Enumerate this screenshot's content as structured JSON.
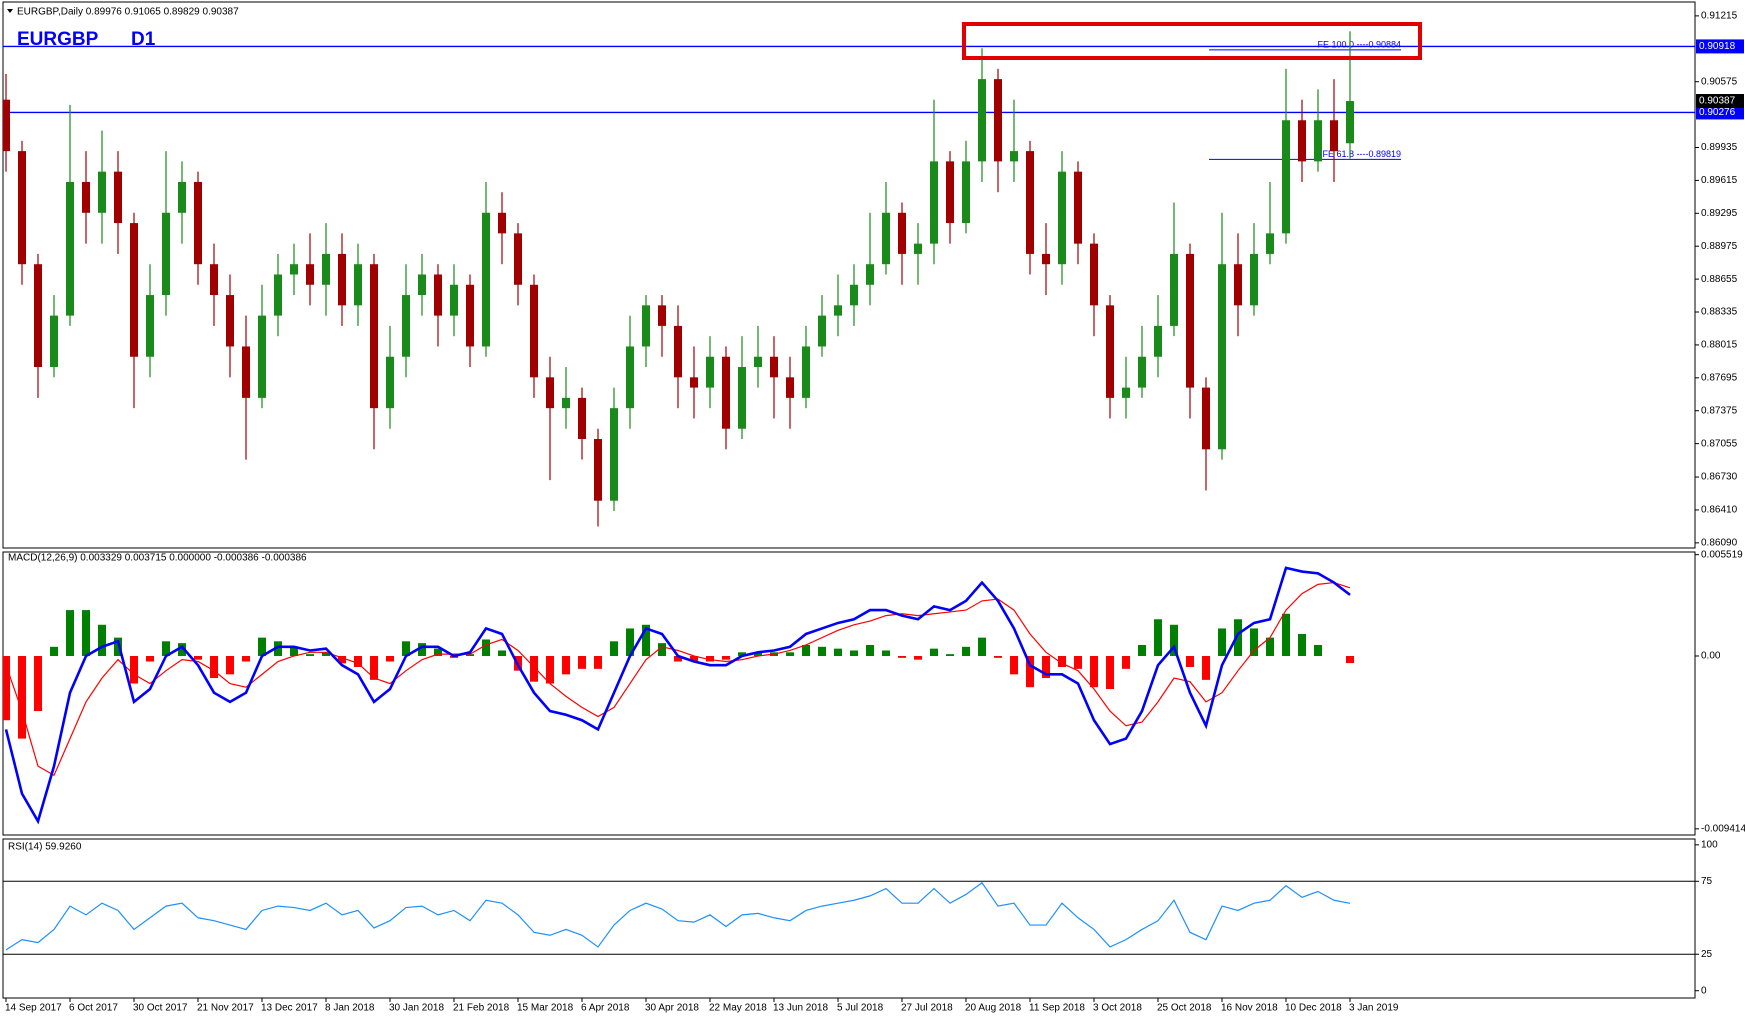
{
  "chart_data": [
    {
      "type": "candlestick",
      "header": "EURGBP,Daily 0.89976 0.91065 0.89829 0.90387",
      "symbol": "EURGBP",
      "timeframe": "D1",
      "up_color": "#1a8a1a",
      "down_color": "#a00000",
      "categories": [
        "14 Sep 2017",
        null,
        null,
        null,
        "6 Oct 2017",
        null,
        null,
        null,
        "30 Oct 2017",
        null,
        null,
        null,
        "21 Nov 2017",
        null,
        null,
        null,
        "13 Dec 2017",
        null,
        null,
        null,
        "8 Jan 2018",
        null,
        null,
        null,
        "30 Jan 2018",
        null,
        null,
        null,
        "21 Feb 2018",
        null,
        null,
        null,
        "15 Mar 2018",
        null,
        null,
        null,
        "6 Apr 2018",
        null,
        null,
        null,
        "30 Apr 2018",
        null,
        null,
        null,
        "22 May 2018",
        null,
        null,
        null,
        "13 Jun 2018",
        null,
        null,
        null,
        "5 Jul 2018",
        null,
        null,
        null,
        "27 Jul 2018",
        null,
        null,
        null,
        "20 Aug 2018",
        null,
        null,
        null,
        "11 Sep 2018",
        null,
        null,
        null,
        "3 Oct 2018",
        null,
        null,
        null,
        "25 Oct 2018",
        null,
        null,
        null,
        "16 Nov 2018",
        null,
        null,
        null,
        "10 Dec 2018",
        null,
        null,
        null,
        "3 Jan 2019"
      ],
      "open": [
        0.904,
        0.899,
        0.888,
        0.878,
        0.883,
        0.896,
        0.893,
        0.897,
        0.892,
        0.879,
        0.885,
        0.893,
        0.896,
        0.888,
        0.885,
        0.88,
        0.875,
        0.883,
        0.887,
        0.888,
        0.886,
        0.889,
        0.884,
        0.888,
        0.874,
        0.879,
        0.885,
        0.887,
        0.883,
        0.886,
        0.88,
        0.893,
        0.891,
        0.886,
        0.877,
        0.874,
        0.875,
        0.871,
        0.865,
        0.874,
        0.88,
        0.884,
        0.882,
        0.877,
        0.876,
        0.879,
        0.872,
        0.878,
        0.879,
        0.877,
        0.875,
        0.88,
        0.883,
        0.884,
        0.886,
        0.888,
        0.893,
        0.889,
        0.89,
        0.898,
        0.892,
        0.898,
        0.906,
        0.898,
        0.899,
        0.889,
        0.888,
        0.897,
        0.89,
        0.884,
        0.875,
        0.876,
        0.879,
        0.882,
        0.889,
        0.876,
        0.87,
        0.888,
        0.884,
        0.889,
        0.891,
        0.902,
        0.898,
        0.902,
        0.89976
      ],
      "high": [
        0.9065,
        0.9,
        0.889,
        0.885,
        0.9035,
        0.899,
        0.901,
        0.899,
        0.893,
        0.888,
        0.899,
        0.898,
        0.897,
        0.89,
        0.887,
        0.883,
        0.886,
        0.889,
        0.89,
        0.891,
        0.892,
        0.891,
        0.89,
        0.889,
        0.882,
        0.888,
        0.889,
        0.888,
        0.888,
        0.887,
        0.896,
        0.895,
        0.892,
        0.887,
        0.879,
        0.878,
        0.876,
        0.872,
        0.876,
        0.883,
        0.885,
        0.885,
        0.884,
        0.88,
        0.881,
        0.88,
        0.881,
        0.882,
        0.881,
        0.879,
        0.882,
        0.885,
        0.887,
        0.888,
        0.893,
        0.896,
        0.894,
        0.892,
        0.904,
        0.899,
        0.9,
        0.909,
        0.907,
        0.904,
        0.9,
        0.892,
        0.899,
        0.898,
        0.891,
        0.885,
        0.879,
        0.882,
        0.885,
        0.894,
        0.89,
        0.877,
        0.893,
        0.891,
        0.892,
        0.896,
        0.907,
        0.904,
        0.905,
        0.906,
        0.91065
      ],
      "low": [
        0.897,
        0.886,
        0.875,
        0.877,
        0.882,
        0.89,
        0.89,
        0.889,
        0.874,
        0.877,
        0.883,
        0.89,
        0.886,
        0.882,
        0.877,
        0.869,
        0.874,
        0.881,
        0.885,
        0.884,
        0.883,
        0.882,
        0.882,
        0.87,
        0.872,
        0.877,
        0.883,
        0.88,
        0.881,
        0.878,
        0.879,
        0.888,
        0.884,
        0.875,
        0.867,
        0.872,
        0.869,
        0.8625,
        0.864,
        0.872,
        0.878,
        0.879,
        0.874,
        0.873,
        0.874,
        0.87,
        0.871,
        0.876,
        0.873,
        0.872,
        0.874,
        0.879,
        0.881,
        0.882,
        0.884,
        0.887,
        0.886,
        0.886,
        0.888,
        0.89,
        0.891,
        0.896,
        0.895,
        0.896,
        0.887,
        0.885,
        0.886,
        0.888,
        0.881,
        0.873,
        0.873,
        0.875,
        0.877,
        0.881,
        0.873,
        0.866,
        0.869,
        0.881,
        0.883,
        0.888,
        0.89,
        0.896,
        0.897,
        0.896,
        0.89829
      ],
      "close": [
        0.899,
        0.888,
        0.878,
        0.883,
        0.896,
        0.893,
        0.897,
        0.892,
        0.879,
        0.885,
        0.893,
        0.896,
        0.888,
        0.885,
        0.88,
        0.875,
        0.883,
        0.887,
        0.888,
        0.886,
        0.889,
        0.884,
        0.888,
        0.874,
        0.879,
        0.885,
        0.887,
        0.883,
        0.886,
        0.88,
        0.893,
        0.891,
        0.886,
        0.877,
        0.874,
        0.875,
        0.871,
        0.865,
        0.874,
        0.88,
        0.884,
        0.882,
        0.877,
        0.876,
        0.879,
        0.872,
        0.878,
        0.879,
        0.877,
        0.875,
        0.88,
        0.883,
        0.884,
        0.886,
        0.888,
        0.893,
        0.889,
        0.89,
        0.898,
        0.892,
        0.898,
        0.906,
        0.898,
        0.899,
        0.889,
        0.888,
        0.897,
        0.89,
        0.884,
        0.875,
        0.876,
        0.879,
        0.882,
        0.889,
        0.876,
        0.87,
        0.888,
        0.884,
        0.889,
        0.891,
        0.902,
        0.898,
        0.902,
        0.899,
        0.90387
      ],
      "ylim": [
        0.8604,
        0.9135
      ],
      "yticks": [
        0.91215,
        0.90575,
        0.89935,
        0.89615,
        0.89295,
        0.88975,
        0.88655,
        0.88335,
        0.88015,
        0.87695,
        0.87375,
        0.87055,
        {
          "value": 0.8673,
          "label": "0.86730"
        },
        {
          "value": 0.8641,
          "label": "0.86410"
        },
        {
          "value": 0.8609,
          "label": "0.86090"
        }
      ],
      "hlines": [
        0.90918,
        0.90276
      ],
      "hline_color": "#0000ff",
      "price_box_color": "#000000",
      "fibo": [
        {
          "label": "FE 100.0 ----0.90884",
          "value": 0.90884
        },
        {
          "label": "FE 61.8 ----0.89819",
          "value": 0.89819
        }
      ],
      "fibo_color": "#0000ff"
    },
    {
      "type": "macd",
      "title": "MACD(12,26,9) 0.003329 0.003715 0.000000 -0.000386 -0.000386",
      "ylim": [
        -0.00975,
        0.005664
      ],
      "yticks": [
        0.005519,
        {
          "value": 0,
          "label": "0.00"
        },
        -0.009414
      ],
      "histogram": {
        "up_color": "#008000",
        "down_color": "#ff0000",
        "values": [
          -0.0035,
          -0.0045,
          -0.003,
          0.0005,
          0.0025,
          0.0025,
          0.0017,
          0.001,
          -0.0015,
          -0.0003,
          0.0008,
          0.0007,
          -0.0002,
          -0.0012,
          -0.001,
          -0.0003,
          0.001,
          0.0008,
          0.0005,
          0.0001,
          0.0002,
          -0.0004,
          -0.0006,
          -0.0013,
          -0.0003,
          0.0008,
          0.0007,
          0.0004,
          -0.0001,
          0.0001,
          0.0009,
          0.0003,
          -0.0008,
          -0.0014,
          -0.0015,
          -0.001,
          -0.0007,
          -0.0007,
          0.0008,
          0.0015,
          0.0017,
          0.0007,
          -0.0003,
          -0.0003,
          -0.0003,
          -0.0002,
          0.0002,
          0.0002,
          0.0002,
          0.0002,
          0.0006,
          0.0005,
          0.0004,
          0.0003,
          0.0006,
          0.0003,
          -0.0001,
          -0.0002,
          0.0004,
          0.0001,
          0.0005,
          0.001,
          -0.0001,
          -0.001,
          -0.0017,
          -0.0012,
          -0.0006,
          -0.0007,
          -0.0017,
          -0.0018,
          -0.0007,
          0.0006,
          0.002,
          0.0017,
          -0.0006,
          -0.0013,
          0.0015,
          0.002,
          0.0015,
          0.001,
          0.0023,
          0.0012,
          0.0006,
          0.0,
          -0.000386
        ]
      },
      "macd_line": {
        "color": "#0000ff",
        "values": [
          -0.004,
          -0.0075,
          -0.009,
          -0.006,
          -0.002,
          0.0,
          0.0005,
          0.0008,
          -0.0025,
          -0.0018,
          0.0,
          0.0005,
          -0.0005,
          -0.002,
          -0.0025,
          -0.002,
          0.0,
          0.0005,
          0.0005,
          0.0003,
          0.0004,
          -0.0005,
          -0.001,
          -0.0025,
          -0.0018,
          0.0,
          0.0005,
          0.0005,
          0.0,
          0.0002,
          0.0015,
          0.0012,
          -0.0005,
          -0.002,
          -0.003,
          -0.0032,
          -0.0035,
          -0.004,
          -0.002,
          0.0,
          0.0015,
          0.0012,
          0.0,
          -0.0003,
          -0.0005,
          -0.0005,
          0.0,
          0.0002,
          0.0003,
          0.0005,
          0.0012,
          0.0015,
          0.0018,
          0.002,
          0.0025,
          0.0025,
          0.0022,
          0.002,
          0.0027,
          0.0025,
          0.003,
          0.004,
          0.003,
          0.0015,
          -0.0005,
          -0.001,
          -0.001,
          -0.0015,
          -0.0035,
          -0.0048,
          -0.0045,
          -0.003,
          -0.0005,
          0.0005,
          -0.002,
          -0.0038,
          -0.0005,
          0.0012,
          0.0018,
          0.002,
          0.0048,
          0.0046,
          0.0045,
          0.004,
          0.003329
        ]
      },
      "signal_line": {
        "color": "#ff0000",
        "values": [
          -0.0005,
          -0.003,
          -0.006,
          -0.0065,
          -0.0045,
          -0.0025,
          -0.0012,
          -0.0002,
          -0.001,
          -0.0015,
          -0.0008,
          -0.0002,
          -0.0003,
          -0.0008,
          -0.0015,
          -0.0017,
          -0.001,
          -0.0003,
          0.0,
          0.0002,
          0.0002,
          -0.0001,
          -0.0004,
          -0.0012,
          -0.0015,
          -0.0008,
          -0.0002,
          0.0001,
          0.0001,
          0.0001,
          0.0006,
          0.0009,
          0.0003,
          -0.0006,
          -0.0015,
          -0.0022,
          -0.0028,
          -0.0033,
          -0.0028,
          -0.0015,
          -0.0002,
          0.0005,
          0.0003,
          0.0,
          -0.0002,
          -0.0003,
          -0.0002,
          0.0,
          0.0001,
          0.0003,
          0.0006,
          0.001,
          0.0014,
          0.0017,
          0.0019,
          0.0022,
          0.0023,
          0.0022,
          0.0023,
          0.0024,
          0.0025,
          0.003,
          0.0031,
          0.0025,
          0.0012,
          0.0002,
          -0.0004,
          -0.0008,
          -0.0018,
          -0.003,
          -0.0038,
          -0.0036,
          -0.0025,
          -0.0012,
          -0.0014,
          -0.0025,
          -0.002,
          -0.0008,
          0.0003,
          0.001,
          0.0025,
          0.0034,
          0.0039,
          0.004,
          0.003715
        ]
      }
    },
    {
      "type": "line",
      "title": "RSI(14) 59.9260",
      "color": "#1e90ff",
      "values": [
        28,
        35,
        33,
        42,
        58,
        52,
        60,
        55,
        42,
        50,
        58,
        60,
        50,
        48,
        45,
        42,
        55,
        58,
        57,
        55,
        60,
        52,
        55,
        43,
        48,
        57,
        58,
        52,
        55,
        48,
        62,
        60,
        52,
        40,
        38,
        42,
        38,
        30,
        45,
        55,
        60,
        56,
        48,
        47,
        52,
        44,
        52,
        53,
        50,
        48,
        55,
        58,
        60,
        62,
        65,
        70,
        60,
        60,
        70,
        60,
        66,
        74,
        58,
        60,
        45,
        45,
        60,
        50,
        42,
        30,
        35,
        42,
        48,
        62,
        40,
        35,
        58,
        55,
        60,
        62,
        72,
        64,
        68,
        62,
        59.926
      ],
      "ylim": [
        -5,
        104
      ],
      "yticks": [
        100,
        75,
        25,
        0
      ],
      "levels": [
        75,
        25
      ]
    }
  ]
}
